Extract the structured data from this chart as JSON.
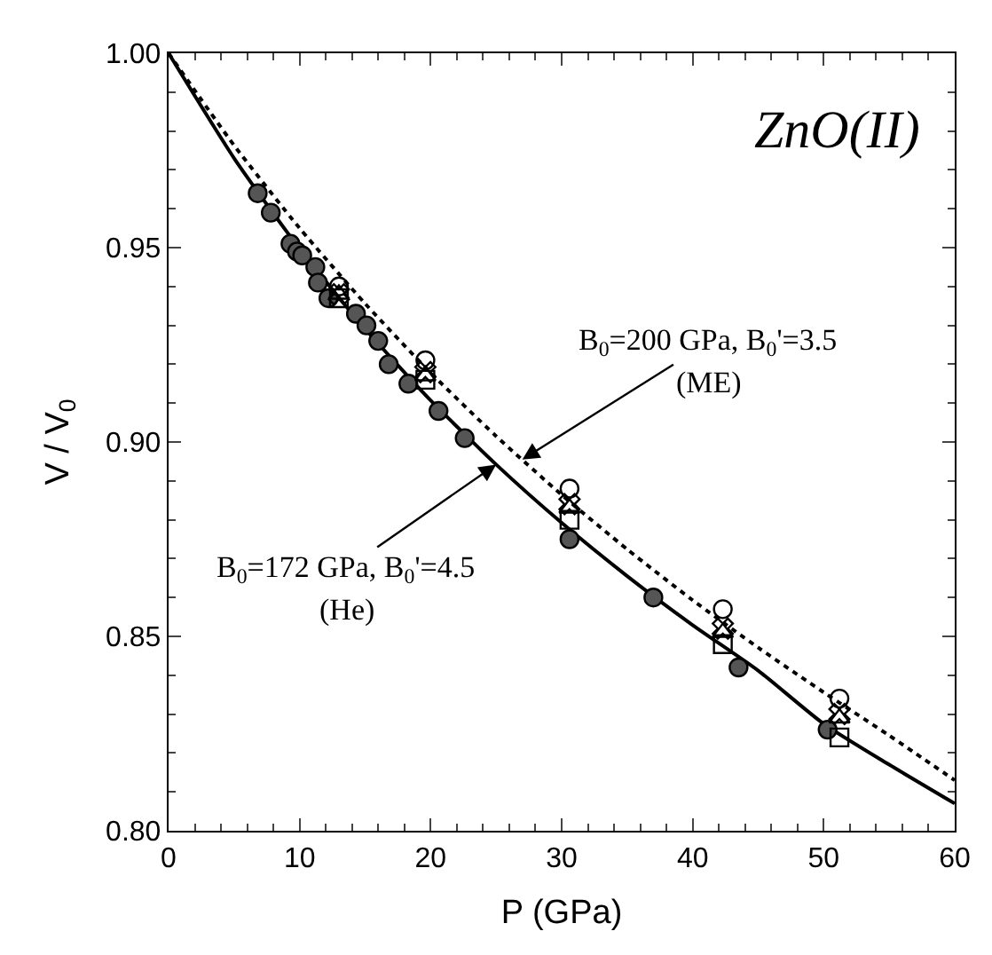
{
  "chart_data": {
    "type": "scatter",
    "xlabel": "P (GPa)",
    "ylabel": "V / V$_{0}$",
    "xlim": [
      0,
      60
    ],
    "xticks": [
      0,
      10,
      20,
      30,
      40,
      50,
      60
    ],
    "ylim": [
      0.8,
      1.0
    ],
    "yticks": [
      {
        "value": 0.8,
        "label": "0.80"
      },
      {
        "value": 0.85,
        "label": "0.85"
      },
      {
        "value": 0.9,
        "label": "0.90"
      },
      {
        "value": 0.95,
        "label": "0.95"
      },
      {
        "value": 1.0,
        "label": "1.00"
      }
    ],
    "series": [
      {
        "type": "line",
        "color": "#000000",
        "line_style": "solid",
        "marker": "none",
        "x": [
          0,
          5,
          10,
          15,
          20,
          25,
          30,
          35,
          40,
          45,
          50,
          55,
          60
        ],
        "values": [
          1.0,
          0.973,
          0.9497,
          0.9291,
          0.9107,
          0.8942,
          0.8792,
          0.8655,
          0.8529,
          0.8412,
          0.8275,
          0.817,
          0.807
        ]
      },
      {
        "type": "line",
        "color": "#000000",
        "line_style": "dotted",
        "marker": "none",
        "x": [
          0,
          5,
          10,
          15,
          20,
          25,
          30,
          35,
          40,
          45,
          50,
          55,
          60
        ],
        "values": [
          1.0,
          0.9763,
          0.955,
          0.9356,
          0.9178,
          0.9015,
          0.8864,
          0.8724,
          0.8593,
          0.8471,
          0.8356,
          0.8245,
          0.813
        ]
      },
      {
        "color": "#555555",
        "marker": "circle",
        "x": [
          6.8,
          7.8,
          9.3,
          9.8,
          10.2,
          11.2,
          11.4,
          12.2,
          14.3,
          15.1,
          16.0,
          16.8,
          18.3,
          20.6,
          22.6,
          30.6,
          37.0,
          43.5,
          50.3
        ],
        "values": [
          0.964,
          0.959,
          0.951,
          0.949,
          0.948,
          0.945,
          0.941,
          0.937,
          0.933,
          0.93,
          0.926,
          0.92,
          0.915,
          0.908,
          0.901,
          0.875,
          0.86,
          0.842,
          0.826
        ]
      },
      {
        "color": "#000000",
        "marker": "circle",
        "x": [
          13.0,
          19.6,
          30.6,
          42.3,
          51.2
        ],
        "values": [
          0.94,
          0.921,
          0.888,
          0.857,
          0.834
        ]
      },
      {
        "color": "#000000",
        "marker": "cross",
        "x": [
          13.0,
          19.6,
          30.6,
          42.3,
          51.2
        ],
        "values": [
          0.938,
          0.918,
          0.884,
          0.852,
          0.83
        ]
      },
      {
        "color": "#000000",
        "marker": "triangle",
        "x": [
          13.0,
          19.6,
          30.6,
          42.3,
          51.2
        ],
        "values": [
          0.938,
          0.917,
          0.883,
          0.851,
          0.829
        ]
      },
      {
        "color": "#000000",
        "marker": "square",
        "x": [
          13.0,
          19.6,
          30.6,
          42.3,
          51.2
        ],
        "values": [
          0.937,
          0.916,
          0.88,
          0.848,
          0.824
        ]
      }
    ],
    "annotations": [
      "ZnO(II)",
      {
        "text": "B$_{0}$=200 GPa, B$_{0}$'=3.5",
        "x": 27,
        "y": 0.8955
      },
      "(ME)",
      {
        "text": "B$_{0}$=172 GPa, B$_{0}$'=4.5",
        "x": 25,
        "y": 0.8942
      },
      "(He)"
    ]
  }
}
